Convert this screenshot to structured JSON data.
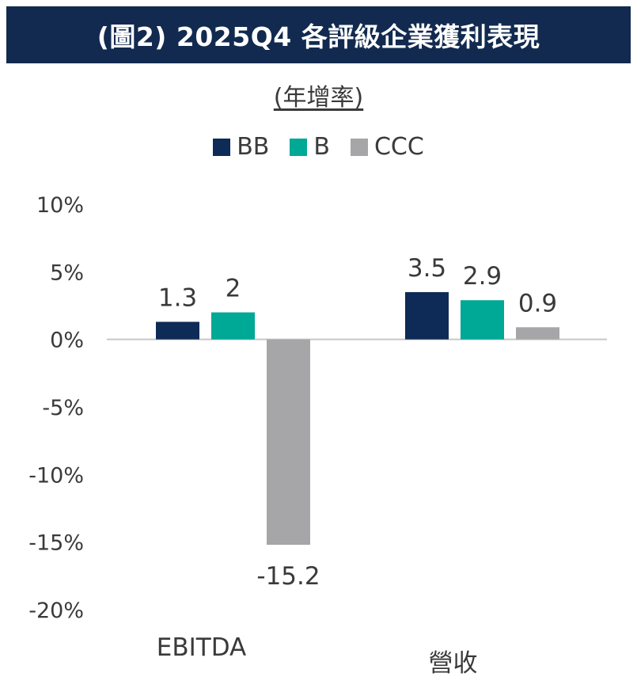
{
  "title": "(圖2) 2025Q4 各評級企業獲利表現",
  "subtitle": "(年增率)",
  "colors": {
    "title_bg": "#122a4f",
    "BB": "#0e2a56",
    "B": "#00a896",
    "CCC": "#a6a6a8",
    "axis": "#c8c8c8",
    "text": "#3a3a3a"
  },
  "chart_data": {
    "type": "bar",
    "categories": [
      "EBITDA",
      "營收"
    ],
    "series": [
      {
        "name": "BB",
        "values": [
          1.3,
          3.5
        ],
        "labels": [
          "1.3",
          "3.5"
        ]
      },
      {
        "name": "B",
        "values": [
          2,
          2.9
        ],
        "labels": [
          "2",
          "2.9"
        ]
      },
      {
        "name": "CCC",
        "values": [
          -15.2,
          0.9
        ],
        "labels": [
          "-15.2",
          "0.9"
        ]
      }
    ],
    "ylim": [
      -20,
      10
    ],
    "yticks": [
      10,
      5,
      0,
      -5,
      -10,
      -15,
      -20
    ],
    "ytick_labels": [
      "10%",
      "5%",
      "0%",
      "-5%",
      "-10%",
      "-15%",
      "-20%"
    ],
    "legend_position": "top-center",
    "grid": false
  }
}
